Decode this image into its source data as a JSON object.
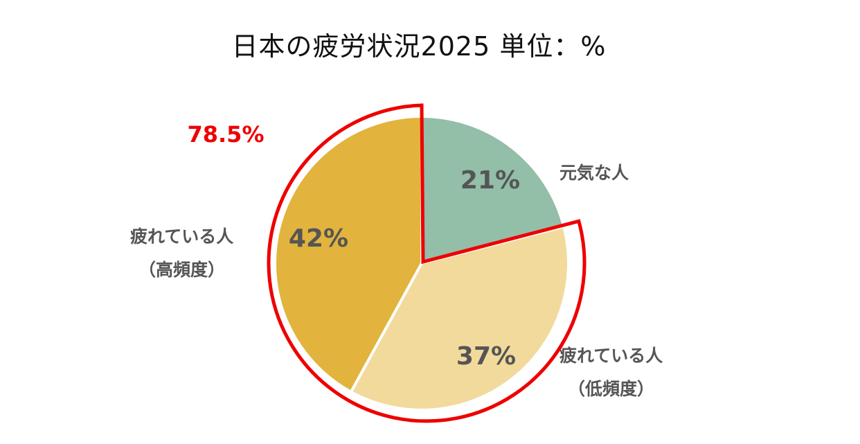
{
  "chart_data": {
    "type": "pie",
    "title": "日本の疲労状況2025 単位：%",
    "slices": [
      {
        "label_lines": [
          "元気な人"
        ],
        "value": 21,
        "value_label": "21%",
        "color": "#93bea8"
      },
      {
        "label_lines": [
          "疲れている人",
          "（低頻度）"
        ],
        "value": 37,
        "value_label": "37%",
        "color": "#f1da9c"
      },
      {
        "label_lines": [
          "疲れている人",
          "（高頻度）"
        ],
        "value": 42,
        "value_label": "42%",
        "color": "#e2b33d"
      }
    ],
    "highlight": {
      "label": "78.5%",
      "covers": [
        "（低頻度）",
        "（高頻度）"
      ],
      "color": "#ee0000"
    }
  }
}
